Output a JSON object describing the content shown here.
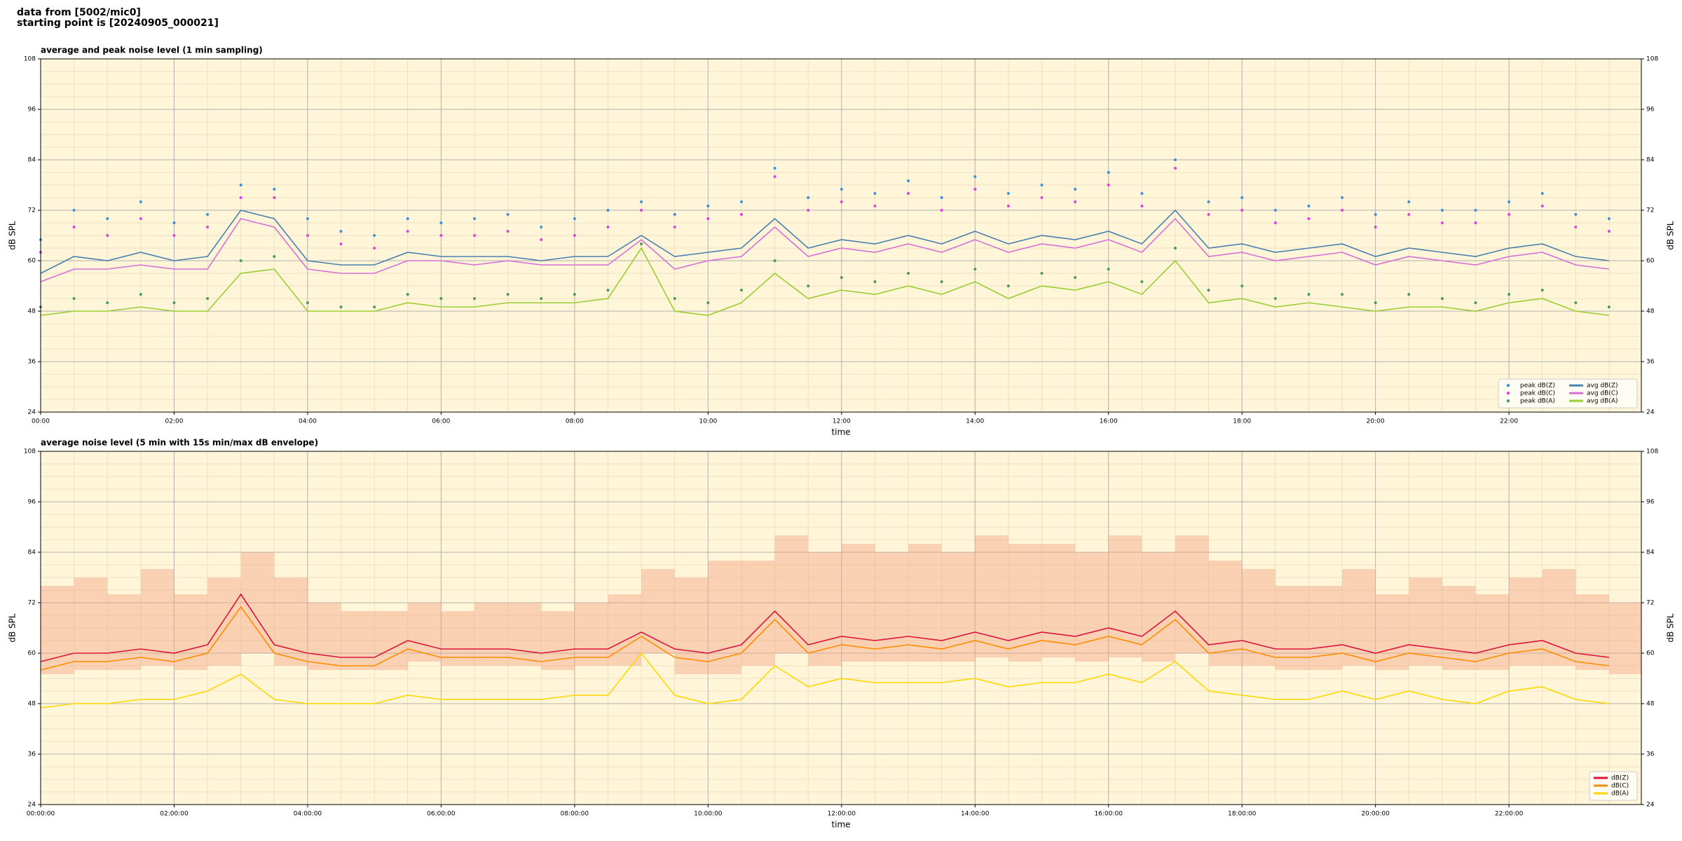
{
  "header": {
    "lines": [
      "data from [5002/mic0]",
      "starting point is [20240905_000021]"
    ]
  },
  "chart_data": [
    {
      "type": "line",
      "title": "average and peak noise level (1 min sampling)",
      "xlabel": "time",
      "ylabel": "dB SPL",
      "xlim": [
        0,
        1439
      ],
      "ylim": [
        24,
        108
      ],
      "yticks": [
        24,
        36,
        48,
        60,
        72,
        84,
        96,
        108
      ],
      "xticks": [
        {
          "value": 0,
          "label": "00:00"
        },
        {
          "value": 120,
          "label": "02:00"
        },
        {
          "value": 240,
          "label": "04:00"
        },
        {
          "value": 360,
          "label": "06:00"
        },
        {
          "value": 480,
          "label": "08:00"
        },
        {
          "value": 600,
          "label": "10:00"
        },
        {
          "value": 720,
          "label": "12:00"
        },
        {
          "value": 840,
          "label": "14:00"
        },
        {
          "value": 960,
          "label": "16:00"
        },
        {
          "value": 1080,
          "label": "18:00"
        },
        {
          "value": 1200,
          "label": "20:00"
        },
        {
          "value": 1320,
          "label": "22:00"
        }
      ],
      "grid": true,
      "minor_grid": 4,
      "right_axis": true,
      "background": "#fff6d9",
      "legend": "lower right",
      "legend_columns": 2,
      "x": [
        0,
        30,
        60,
        90,
        120,
        150,
        180,
        210,
        240,
        270,
        300,
        330,
        360,
        390,
        420,
        450,
        480,
        510,
        540,
        570,
        600,
        630,
        660,
        690,
        720,
        750,
        780,
        810,
        840,
        870,
        900,
        930,
        960,
        990,
        1020,
        1050,
        1080,
        1110,
        1140,
        1170,
        1200,
        1230,
        1260,
        1290,
        1320,
        1350,
        1380,
        1410
      ],
      "series": [
        {
          "name": "peak dB(Z)",
          "type": "scatter",
          "color": "#3f8fe0",
          "values": [
            65,
            72,
            70,
            74,
            69,
            71,
            78,
            77,
            70,
            67,
            66,
            70,
            69,
            70,
            71,
            68,
            70,
            72,
            74,
            71,
            73,
            74,
            82,
            75,
            77,
            76,
            79,
            75,
            80,
            76,
            78,
            77,
            81,
            76,
            84,
            74,
            75,
            72,
            73,
            75,
            71,
            74,
            72,
            72,
            74,
            76,
            71,
            70
          ]
        },
        {
          "name": "peak dB(C)",
          "type": "scatter",
          "color": "#e040e0",
          "values": [
            62,
            68,
            66,
            70,
            66,
            68,
            75,
            75,
            66,
            64,
            63,
            67,
            66,
            66,
            67,
            65,
            66,
            68,
            72,
            68,
            70,
            71,
            80,
            72,
            74,
            73,
            76,
            72,
            77,
            73,
            75,
            74,
            78,
            73,
            82,
            71,
            72,
            69,
            70,
            72,
            68,
            71,
            69,
            69,
            71,
            73,
            68,
            67
          ]
        },
        {
          "name": "peak dB(A)",
          "type": "scatter",
          "color": "#4a9a5a",
          "values": [
            49,
            51,
            50,
            52,
            50,
            51,
            60,
            61,
            50,
            49,
            49,
            52,
            51,
            51,
            52,
            51,
            52,
            53,
            64,
            51,
            50,
            53,
            60,
            54,
            56,
            55,
            57,
            55,
            58,
            54,
            57,
            56,
            58,
            55,
            63,
            53,
            54,
            51,
            52,
            52,
            50,
            52,
            51,
            50,
            52,
            53,
            50,
            49
          ]
        },
        {
          "name": "avg dB(Z)",
          "type": "line",
          "color": "#4a7fb0",
          "values": [
            57,
            61,
            60,
            62,
            60,
            61,
            72,
            70,
            60,
            59,
            59,
            62,
            61,
            61,
            61,
            60,
            61,
            61,
            66,
            61,
            62,
            63,
            70,
            63,
            65,
            64,
            66,
            64,
            67,
            64,
            66,
            65,
            67,
            64,
            72,
            63,
            64,
            62,
            63,
            64,
            61,
            63,
            62,
            61,
            63,
            64,
            61,
            60
          ]
        },
        {
          "name": "avg dB(C)",
          "type": "line",
          "color": "#d66fd6",
          "values": [
            55,
            58,
            58,
            59,
            58,
            58,
            70,
            68,
            58,
            57,
            57,
            60,
            60,
            59,
            60,
            59,
            59,
            59,
            65,
            58,
            60,
            61,
            68,
            61,
            63,
            62,
            64,
            62,
            65,
            62,
            64,
            63,
            65,
            62,
            70,
            61,
            62,
            60,
            61,
            62,
            59,
            61,
            60,
            59,
            61,
            62,
            59,
            58
          ]
        },
        {
          "name": "avg dB(A)",
          "type": "line",
          "color": "#9acd32",
          "values": [
            47,
            48,
            48,
            49,
            48,
            48,
            57,
            58,
            48,
            48,
            48,
            50,
            49,
            49,
            50,
            50,
            50,
            51,
            63,
            48,
            47,
            50,
            57,
            51,
            53,
            52,
            54,
            52,
            55,
            51,
            54,
            53,
            55,
            52,
            60,
            50,
            51,
            49,
            50,
            49,
            48,
            49,
            49,
            48,
            50,
            51,
            48,
            47
          ]
        }
      ]
    },
    {
      "type": "line",
      "title": "average noise level (5 min with 15s min/max dB envelope)",
      "xlabel": "time",
      "ylabel": "dB SPL",
      "xlim": [
        0,
        1439
      ],
      "ylim": [
        24,
        108
      ],
      "yticks": [
        24,
        36,
        48,
        60,
        72,
        84,
        96,
        108
      ],
      "xticks": [
        {
          "value": 0,
          "label": "00:00:00"
        },
        {
          "value": 120,
          "label": "02:00:00"
        },
        {
          "value": 240,
          "label": "04:00:00"
        },
        {
          "value": 360,
          "label": "06:00:00"
        },
        {
          "value": 480,
          "label": "08:00:00"
        },
        {
          "value": 600,
          "label": "10:00:00"
        },
        {
          "value": 720,
          "label": "12:00:00"
        },
        {
          "value": 840,
          "label": "14:00:00"
        },
        {
          "value": 960,
          "label": "16:00:00"
        },
        {
          "value": 1080,
          "label": "18:00:00"
        },
        {
          "value": 1200,
          "label": "20:00:00"
        },
        {
          "value": 1320,
          "label": "22:00:00"
        }
      ],
      "grid": true,
      "minor_grid": 4,
      "right_axis": true,
      "background": "#fff6d9",
      "legend": "lower right",
      "legend_columns": 1,
      "x": [
        0,
        30,
        60,
        90,
        120,
        150,
        180,
        210,
        240,
        270,
        300,
        330,
        360,
        390,
        420,
        450,
        480,
        510,
        540,
        570,
        600,
        630,
        660,
        690,
        720,
        750,
        780,
        810,
        840,
        870,
        900,
        930,
        960,
        990,
        1020,
        1050,
        1080,
        1110,
        1140,
        1170,
        1200,
        1230,
        1260,
        1290,
        1320,
        1350,
        1380,
        1410
      ],
      "envelope": {
        "color": "#f4a582",
        "low": [
          55,
          56,
          56,
          57,
          56,
          57,
          60,
          57,
          56,
          56,
          56,
          58,
          57,
          57,
          57,
          56,
          57,
          57,
          60,
          55,
          55,
          57,
          60,
          57,
          58,
          58,
          58,
          58,
          59,
          58,
          59,
          58,
          59,
          58,
          60,
          57,
          57,
          56,
          56,
          57,
          56,
          57,
          56,
          56,
          57,
          57,
          56,
          55
        ],
        "high": [
          76,
          78,
          74,
          80,
          74,
          78,
          84,
          78,
          72,
          70,
          70,
          72,
          70,
          72,
          72,
          70,
          72,
          74,
          80,
          78,
          82,
          82,
          88,
          84,
          86,
          84,
          86,
          84,
          88,
          86,
          86,
          84,
          88,
          84,
          88,
          82,
          80,
          76,
          76,
          80,
          74,
          78,
          76,
          74,
          78,
          80,
          74,
          72
        ]
      },
      "series": [
        {
          "name": "dB(Z)",
          "type": "line",
          "color": "#dc143c",
          "values": [
            58,
            60,
            60,
            61,
            60,
            62,
            74,
            62,
            60,
            59,
            59,
            63,
            61,
            61,
            61,
            60,
            61,
            61,
            65,
            61,
            60,
            62,
            70,
            62,
            64,
            63,
            64,
            63,
            65,
            63,
            65,
            64,
            66,
            64,
            70,
            62,
            63,
            61,
            61,
            62,
            60,
            62,
            61,
            60,
            62,
            63,
            60,
            59
          ]
        },
        {
          "name": "dB(C)",
          "type": "line",
          "color": "#ff8c00",
          "values": [
            56,
            58,
            58,
            59,
            58,
            60,
            71,
            60,
            58,
            57,
            57,
            61,
            59,
            59,
            59,
            58,
            59,
            59,
            64,
            59,
            58,
            60,
            68,
            60,
            62,
            61,
            62,
            61,
            63,
            61,
            63,
            62,
            64,
            62,
            68,
            60,
            61,
            59,
            59,
            60,
            58,
            60,
            59,
            58,
            60,
            61,
            58,
            57
          ]
        },
        {
          "name": "dB(A)",
          "type": "line",
          "color": "#ffd700",
          "values": [
            47,
            48,
            48,
            49,
            49,
            51,
            55,
            49,
            48,
            48,
            48,
            50,
            49,
            49,
            49,
            49,
            50,
            50,
            60,
            50,
            48,
            49,
            57,
            52,
            54,
            53,
            53,
            53,
            54,
            52,
            53,
            53,
            55,
            53,
            58,
            51,
            50,
            49,
            49,
            51,
            49,
            51,
            49,
            48,
            51,
            52,
            49,
            48
          ]
        }
      ]
    }
  ]
}
